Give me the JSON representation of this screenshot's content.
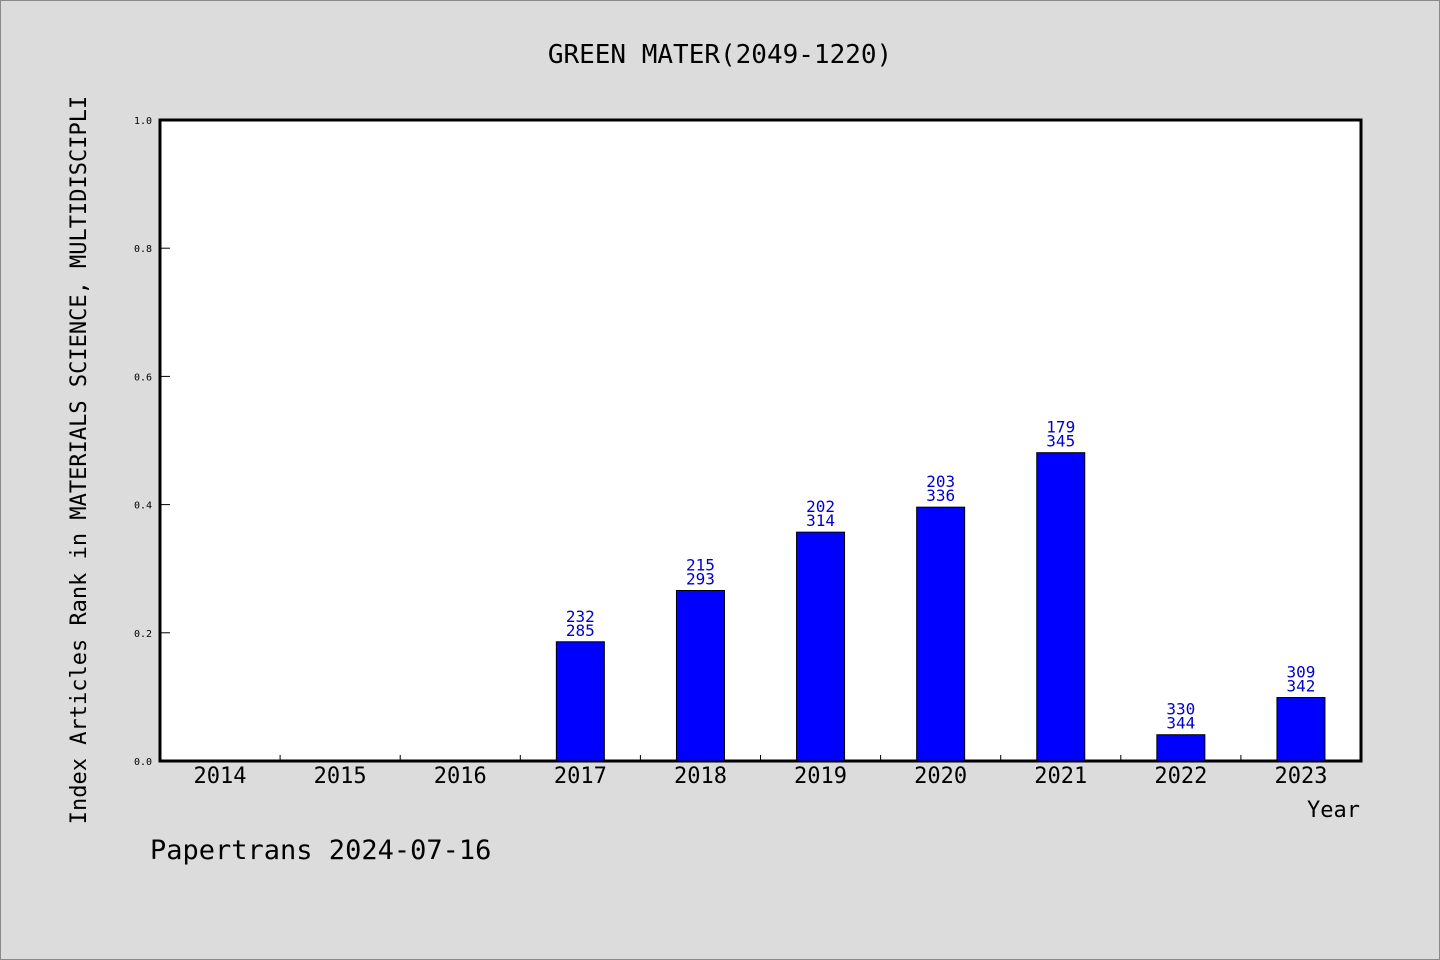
{
  "chart_data": {
    "type": "bar",
    "title": "GREEN MATER(2049-1220)",
    "xlabel": "Year",
    "ylabel": "Index Articles Rank in MATERIALS SCIENCE, MULTIDISCIPLI",
    "categories": [
      "2014",
      "2015",
      "2016",
      "2017",
      "2018",
      "2019",
      "2020",
      "2021",
      "2022",
      "2023"
    ],
    "values": [
      0,
      0,
      0,
      0.186,
      0.266,
      0.357,
      0.396,
      0.481,
      0.041,
      0.099
    ],
    "labels_top": [
      "",
      "",
      "",
      "232",
      "215",
      "202",
      "203",
      "179",
      "330",
      "309"
    ],
    "labels_bottom": [
      "",
      "",
      "",
      "285",
      "293",
      "314",
      "336",
      "345",
      "344",
      "342"
    ],
    "ylim": [
      0.0,
      1.0
    ],
    "yticks": [
      "0.0",
      "0.2",
      "0.4",
      "0.6",
      "0.8",
      "1.0"
    ],
    "bar_color": "#0000ff",
    "label_color": "#0000cc",
    "grid": false
  },
  "footer": "Papertrans 2024-07-16"
}
